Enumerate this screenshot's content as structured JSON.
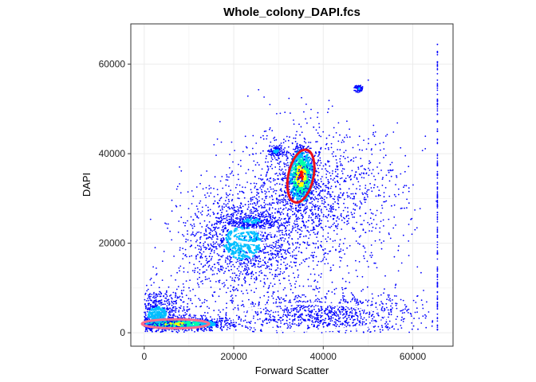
{
  "chart_data": {
    "type": "scatter",
    "title": "Whole_colony_DAPI.fcs",
    "xlabel": "Forward Scatter",
    "ylabel": "DAPI",
    "xlim": [
      -3000,
      69000
    ],
    "ylim": [
      -3000,
      69000
    ],
    "x_ticks": [
      0,
      20000,
      40000,
      60000
    ],
    "y_ticks": [
      0,
      20000,
      40000,
      60000
    ],
    "x_tick_labels": [
      "0",
      "20000",
      "40000",
      "60000"
    ],
    "y_tick_labels": [
      "0",
      "20000",
      "40000",
      "60000"
    ],
    "grid": true,
    "density_colors": [
      "#0000ff",
      "#00bfff",
      "#00ffaa",
      "#ffff00",
      "#ff0000"
    ],
    "populations": [
      {
        "cx": 7000,
        "cy": 2000,
        "sx": 7000,
        "sy": 800,
        "n": 900,
        "density": "high"
      },
      {
        "cx": 3000,
        "cy": 4000,
        "sx": 3500,
        "sy": 3000,
        "n": 700,
        "density": "medium"
      },
      {
        "cx": 35000,
        "cy": 35000,
        "sx": 1800,
        "sy": 4000,
        "n": 700,
        "density": "very-high"
      },
      {
        "cx": 22000,
        "cy": 20000,
        "sx": 7000,
        "sy": 6000,
        "n": 1400,
        "density": "medium"
      },
      {
        "cx": 38000,
        "cy": 30000,
        "sx": 10000,
        "sy": 8000,
        "n": 1400,
        "density": "low"
      },
      {
        "cx": 40000,
        "cy": 4000,
        "sx": 11000,
        "sy": 2500,
        "n": 1100,
        "density": "low"
      },
      {
        "cx": 24000,
        "cy": 25000,
        "sx": 3000,
        "sy": 900,
        "n": 250,
        "density": "medium"
      },
      {
        "cx": 29500,
        "cy": 40500,
        "sx": 1000,
        "sy": 600,
        "n": 120,
        "density": "medium"
      },
      {
        "cx": 48000,
        "cy": 54500,
        "sx": 500,
        "sy": 400,
        "n": 60,
        "density": "medium"
      }
    ],
    "gates": [
      {
        "name": "gate-red",
        "cx": 35000,
        "cy": 35000,
        "rx": 2800,
        "ry": 6000,
        "angle": 12,
        "color": "#e8101a"
      },
      {
        "name": "gate-white-upper",
        "cx": 24800,
        "cy": 21500,
        "rx": 5200,
        "ry": 1500,
        "angle": 0,
        "color": "#ffffff"
      },
      {
        "name": "gate-white-lower",
        "cx": 37000,
        "cy": 3500,
        "rx": 17000,
        "ry": 3000,
        "angle": 0,
        "color": "#ffffff"
      },
      {
        "name": "gate-pink",
        "cx": 7000,
        "cy": 2000,
        "rx": 7500,
        "ry": 1000,
        "angle": 0,
        "color": "#ff6e8a"
      }
    ]
  }
}
